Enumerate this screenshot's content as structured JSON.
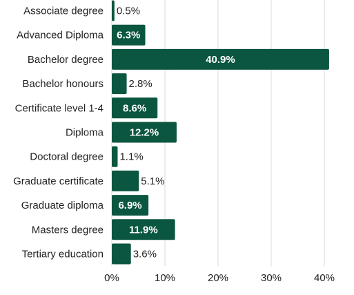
{
  "chart_data": {
    "type": "bar",
    "orientation": "horizontal",
    "categories": [
      "Associate degree",
      "Advanced Diploma",
      "Bachelor degree",
      "Bachelor honours",
      "Certificate level 1-4",
      "Diploma",
      "Doctoral degree",
      "Graduate certificate",
      "Graduate diploma",
      "Masters degree",
      "Tertiary education"
    ],
    "values": [
      0.5,
      6.3,
      40.9,
      2.8,
      8.6,
      12.2,
      1.1,
      5.1,
      6.9,
      11.9,
      3.6
    ],
    "value_labels": [
      "0.5%",
      "6.3%",
      "40.9%",
      "2.8%",
      "8.6%",
      "12.2%",
      "1.1%",
      "5.1%",
      "6.9%",
      "11.9%",
      "3.6%"
    ],
    "xticks": [
      0,
      10,
      20,
      30,
      40
    ],
    "xtick_labels": [
      "0%",
      "10%",
      "20%",
      "30%",
      "40%"
    ],
    "xlim": [
      0,
      43
    ],
    "grid": true,
    "bar_color": "#0b5640"
  }
}
